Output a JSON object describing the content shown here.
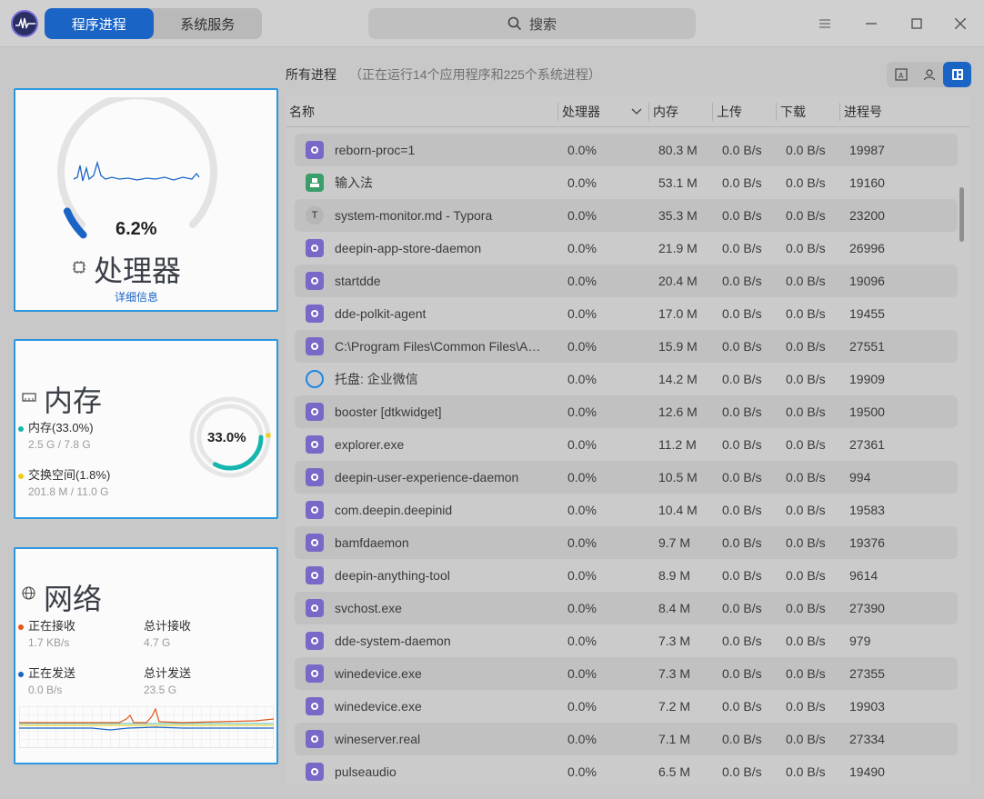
{
  "titlebar": {
    "tabs": [
      {
        "label": "程序进程",
        "active": true
      },
      {
        "label": "系统服务",
        "active": false
      }
    ],
    "search_placeholder": "搜索",
    "menu_icon": "menu-icon",
    "minimize_icon": "minimize-icon",
    "maximize_icon": "maximize-icon",
    "close_icon": "close-icon"
  },
  "cpu": {
    "percent_text": "6.2%",
    "percent": 6.2,
    "title": "处理器",
    "details_link": "详细信息",
    "accent": "#1a64c6"
  },
  "memory": {
    "title": "内存",
    "center_text": "33.0%",
    "mem_label": "内存(33.0%)",
    "mem_detail": "2.5 G / 7.8 G",
    "mem_percent": 33.0,
    "swap_label": "交换空间(1.8%)",
    "swap_detail": "201.8 M / 11.0 G",
    "swap_percent": 1.8,
    "mem_color": "#15b5b0",
    "swap_color": "#f2cc17"
  },
  "network": {
    "title": "网络",
    "recv_label": "正在接收",
    "recv_value": "1.7 KB/s",
    "total_recv_label": "总计接收",
    "total_recv_value": "4.7 G",
    "send_label": "正在发送",
    "send_value": "0.0 B/s",
    "total_send_label": "总计发送",
    "total_send_value": "23.5 G",
    "recv_color": "#e0561c",
    "send_color": "#1a64c6"
  },
  "process_header": {
    "title": "所有进程",
    "subtitle": "（正在运行14个应用程序和225个系统进程）"
  },
  "table": {
    "columns": [
      "名称",
      "处理器",
      "内存",
      "上传",
      "下载",
      "进程号"
    ],
    "rows": [
      {
        "icon": "gear",
        "name": "reborn-proc=1",
        "cpu": "0.0%",
        "mem": "80.3 M",
        "up": "0.0 B/s",
        "down": "0.0 B/s",
        "pid": "19987"
      },
      {
        "icon": "keyboard",
        "name": "输入法",
        "cpu": "0.0%",
        "mem": "53.1 M",
        "up": "0.0 B/s",
        "down": "0.0 B/s",
        "pid": "19160"
      },
      {
        "icon": "typora",
        "name": "system-monitor.md - Typora",
        "cpu": "0.0%",
        "mem": "35.3 M",
        "up": "0.0 B/s",
        "down": "0.0 B/s",
        "pid": "23200"
      },
      {
        "icon": "gear",
        "name": "deepin-app-store-daemon",
        "cpu": "0.0%",
        "mem": "21.9 M",
        "up": "0.0 B/s",
        "down": "0.0 B/s",
        "pid": "26996"
      },
      {
        "icon": "gear",
        "name": "startdde",
        "cpu": "0.0%",
        "mem": "20.4 M",
        "up": "0.0 B/s",
        "down": "0.0 B/s",
        "pid": "19096"
      },
      {
        "icon": "gear",
        "name": "dde-polkit-agent",
        "cpu": "0.0%",
        "mem": "17.0 M",
        "up": "0.0 B/s",
        "down": "0.0 B/s",
        "pid": "19455"
      },
      {
        "icon": "gear",
        "name": "C:\\Program Files\\Common Files\\A…",
        "cpu": "0.0%",
        "mem": "15.9 M",
        "up": "0.0 B/s",
        "down": "0.0 B/s",
        "pid": "27551"
      },
      {
        "icon": "wechat",
        "name": "托盘: 企业微信",
        "cpu": "0.0%",
        "mem": "14.2 M",
        "up": "0.0 B/s",
        "down": "0.0 B/s",
        "pid": "19909"
      },
      {
        "icon": "gear",
        "name": "booster [dtkwidget]",
        "cpu": "0.0%",
        "mem": "12.6 M",
        "up": "0.0 B/s",
        "down": "0.0 B/s",
        "pid": "19500"
      },
      {
        "icon": "gear",
        "name": "explorer.exe",
        "cpu": "0.0%",
        "mem": "11.2 M",
        "up": "0.0 B/s",
        "down": "0.0 B/s",
        "pid": "27361"
      },
      {
        "icon": "gear",
        "name": "deepin-user-experience-daemon",
        "cpu": "0.0%",
        "mem": "10.5 M",
        "up": "0.0 B/s",
        "down": "0.0 B/s",
        "pid": "994"
      },
      {
        "icon": "gear",
        "name": "com.deepin.deepinid",
        "cpu": "0.0%",
        "mem": "10.4 M",
        "up": "0.0 B/s",
        "down": "0.0 B/s",
        "pid": "19583"
      },
      {
        "icon": "gear",
        "name": "bamfdaemon",
        "cpu": "0.0%",
        "mem": "9.7 M",
        "up": "0.0 B/s",
        "down": "0.0 B/s",
        "pid": "19376"
      },
      {
        "icon": "gear",
        "name": "deepin-anything-tool",
        "cpu": "0.0%",
        "mem": "8.9 M",
        "up": "0.0 B/s",
        "down": "0.0 B/s",
        "pid": "9614"
      },
      {
        "icon": "gear",
        "name": "svchost.exe",
        "cpu": "0.0%",
        "mem": "8.4 M",
        "up": "0.0 B/s",
        "down": "0.0 B/s",
        "pid": "27390"
      },
      {
        "icon": "gear",
        "name": "dde-system-daemon",
        "cpu": "0.0%",
        "mem": "7.3 M",
        "up": "0.0 B/s",
        "down": "0.0 B/s",
        "pid": "979"
      },
      {
        "icon": "gear",
        "name": "winedevice.exe",
        "cpu": "0.0%",
        "mem": "7.3 M",
        "up": "0.0 B/s",
        "down": "0.0 B/s",
        "pid": "27355"
      },
      {
        "icon": "gear",
        "name": "winedevice.exe",
        "cpu": "0.0%",
        "mem": "7.2 M",
        "up": "0.0 B/s",
        "down": "0.0 B/s",
        "pid": "19903"
      },
      {
        "icon": "gear",
        "name": "wineserver.real",
        "cpu": "0.0%",
        "mem": "7.1 M",
        "up": "0.0 B/s",
        "down": "0.0 B/s",
        "pid": "27334"
      },
      {
        "icon": "gear",
        "name": "pulseaudio",
        "cpu": "0.0%",
        "mem": "6.5 M",
        "up": "0.0 B/s",
        "down": "0.0 B/s",
        "pid": "19490"
      }
    ]
  }
}
